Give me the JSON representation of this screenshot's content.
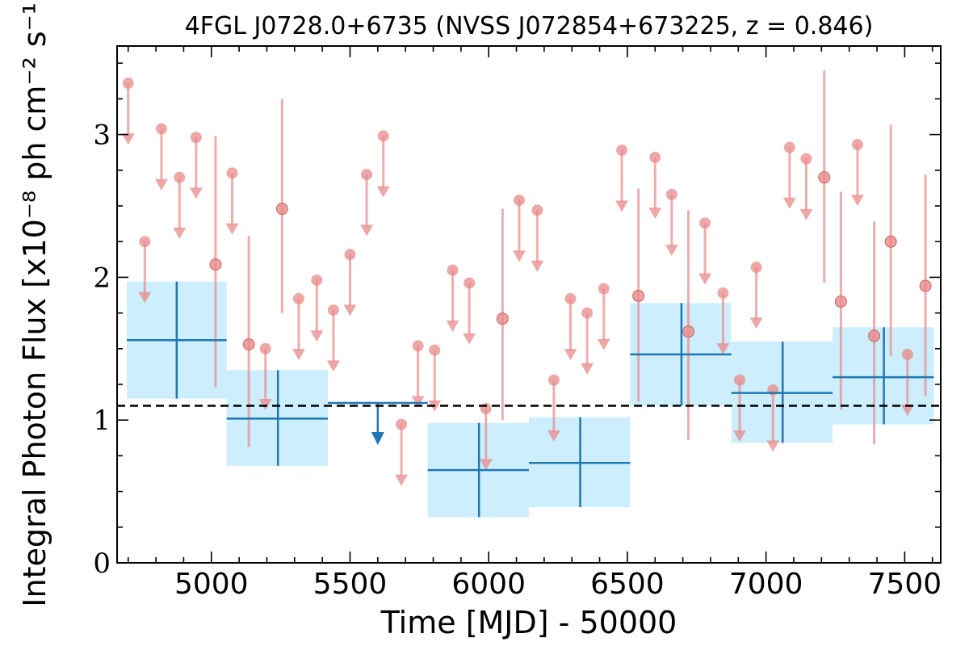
{
  "chart_data": {
    "type": "scatter",
    "title": "4FGL J0728.0+6735 (NVSS J072854+673225, z = 0.846)",
    "xlabel": "Time [MJD] - 50000",
    "ylabel": "Integral Photon Flux [x10⁻⁸ ph cm⁻² s⁻¹]",
    "xlim": [
      4660,
      7630
    ],
    "ylim": [
      0,
      3.62
    ],
    "xticks": [
      5000,
      5500,
      6000,
      6500,
      7000,
      7500
    ],
    "xtick_labels": [
      "5000",
      "5500",
      "6000",
      "6500",
      "7000",
      "7500"
    ],
    "yticks": [
      0,
      1,
      2,
      3
    ],
    "ytick_labels": [
      "0",
      "1",
      "2",
      "3"
    ],
    "reference_line": {
      "y": 1.1,
      "style": "dashed",
      "color": "#000000"
    },
    "colors": {
      "fine": "#e88a8a",
      "coarse": "#1f77b4",
      "band": "#cdeefc"
    },
    "fine_bins": {
      "upper_limits": [
        {
          "x": 4700,
          "y": 3.36
        },
        {
          "x": 4760,
          "y": 2.25
        },
        {
          "x": 4820,
          "y": 3.04
        },
        {
          "x": 4885,
          "y": 2.7
        },
        {
          "x": 4945,
          "y": 2.98
        },
        {
          "x": 5075,
          "y": 2.73
        },
        {
          "x": 5195,
          "y": 1.5
        },
        {
          "x": 5315,
          "y": 1.85
        },
        {
          "x": 5380,
          "y": 1.98
        },
        {
          "x": 5440,
          "y": 1.77
        },
        {
          "x": 5500,
          "y": 2.16
        },
        {
          "x": 5560,
          "y": 2.72
        },
        {
          "x": 5620,
          "y": 2.99
        },
        {
          "x": 5685,
          "y": 0.97
        },
        {
          "x": 5745,
          "y": 1.52
        },
        {
          "x": 5805,
          "y": 1.49
        },
        {
          "x": 5870,
          "y": 2.05
        },
        {
          "x": 5930,
          "y": 1.96
        },
        {
          "x": 5990,
          "y": 1.08
        },
        {
          "x": 6110,
          "y": 2.54
        },
        {
          "x": 6175,
          "y": 2.47
        },
        {
          "x": 6235,
          "y": 1.28
        },
        {
          "x": 6295,
          "y": 1.85
        },
        {
          "x": 6355,
          "y": 1.75
        },
        {
          "x": 6415,
          "y": 1.92
        },
        {
          "x": 6480,
          "y": 2.89
        },
        {
          "x": 6600,
          "y": 2.84
        },
        {
          "x": 6660,
          "y": 2.58
        },
        {
          "x": 6780,
          "y": 2.38
        },
        {
          "x": 6845,
          "y": 1.89
        },
        {
          "x": 6905,
          "y": 1.28
        },
        {
          "x": 6965,
          "y": 2.07
        },
        {
          "x": 7025,
          "y": 1.21
        },
        {
          "x": 7085,
          "y": 2.91
        },
        {
          "x": 7145,
          "y": 2.83
        },
        {
          "x": 7330,
          "y": 2.93
        },
        {
          "x": 7510,
          "y": 1.46
        }
      ],
      "detections": [
        {
          "x": 5015,
          "y": 2.09,
          "ylo": 1.23,
          "yhi": 2.99
        },
        {
          "x": 5135,
          "y": 1.53,
          "ylo": 0.81,
          "yhi": 2.29
        },
        {
          "x": 5255,
          "y": 2.48,
          "ylo": 1.75,
          "yhi": 3.25
        },
        {
          "x": 6050,
          "y": 1.71,
          "ylo": 1.0,
          "yhi": 2.48
        },
        {
          "x": 6540,
          "y": 1.87,
          "ylo": 1.13,
          "yhi": 2.62
        },
        {
          "x": 6720,
          "y": 1.62,
          "ylo": 0.86,
          "yhi": 2.47
        },
        {
          "x": 7210,
          "y": 2.7,
          "ylo": 1.96,
          "yhi": 3.45
        },
        {
          "x": 7270,
          "y": 1.83,
          "ylo": 1.07,
          "yhi": 2.6
        },
        {
          "x": 7390,
          "y": 1.59,
          "ylo": 0.83,
          "yhi": 2.39
        },
        {
          "x": 7450,
          "y": 2.25,
          "ylo": 1.45,
          "yhi": 3.07
        },
        {
          "x": 7575,
          "y": 1.94,
          "ylo": 1.17,
          "yhi": 2.72
        }
      ]
    },
    "coarse_bins": {
      "detections": [
        {
          "x": 4875,
          "xlo": 4695,
          "xhi": 5055,
          "y": 1.56,
          "ylo": 1.15,
          "yhi": 1.97
        },
        {
          "x": 5240,
          "xlo": 5055,
          "xhi": 5420,
          "y": 1.01,
          "ylo": 0.68,
          "yhi": 1.35
        },
        {
          "x": 5965,
          "xlo": 5780,
          "xhi": 6145,
          "y": 0.65,
          "ylo": 0.32,
          "yhi": 0.98
        },
        {
          "x": 6330,
          "xlo": 6145,
          "xhi": 6510,
          "y": 0.7,
          "ylo": 0.39,
          "yhi": 1.02
        },
        {
          "x": 6695,
          "xlo": 6510,
          "xhi": 6875,
          "y": 1.46,
          "ylo": 1.1,
          "yhi": 1.82
        },
        {
          "x": 7060,
          "xlo": 6875,
          "xhi": 7240,
          "y": 1.19,
          "ylo": 0.84,
          "yhi": 1.55
        },
        {
          "x": 7425,
          "xlo": 7240,
          "xhi": 7605,
          "y": 1.3,
          "ylo": 0.97,
          "yhi": 1.65
        }
      ],
      "upper_limits": [
        {
          "x": 5600,
          "xlo": 5420,
          "xhi": 5780,
          "y": 1.12
        }
      ]
    }
  }
}
